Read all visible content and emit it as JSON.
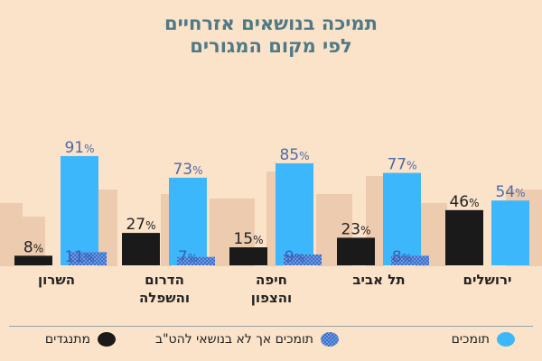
{
  "chart_data": {
    "type": "bar",
    "title": "תמיכה בנושאים אזרחיים",
    "subtitle": "לפי מקום המגורים",
    "categories": [
      "השרון",
      "הדרום\nוהשפלה",
      "חיפה\nוהצפון",
      "תל אביב",
      "ירושלים"
    ],
    "series": [
      {
        "name": "מתנגדים",
        "color": "#1a1a1a",
        "values": [
          8,
          27,
          15,
          23,
          46
        ]
      },
      {
        "name": "תומכים",
        "color": "#3db7fb",
        "values": [
          91,
          73,
          85,
          77,
          54
        ]
      },
      {
        "name": "תומכים אך לא בנושאי להט\"ב",
        "color": "#4a7fd4",
        "pattern": "hatched",
        "values": [
          11,
          7,
          9,
          8,
          null
        ]
      }
    ],
    "value_suffix": "%",
    "ylim": [
      0,
      100
    ],
    "legend_position": "bottom",
    "grid": false
  }
}
